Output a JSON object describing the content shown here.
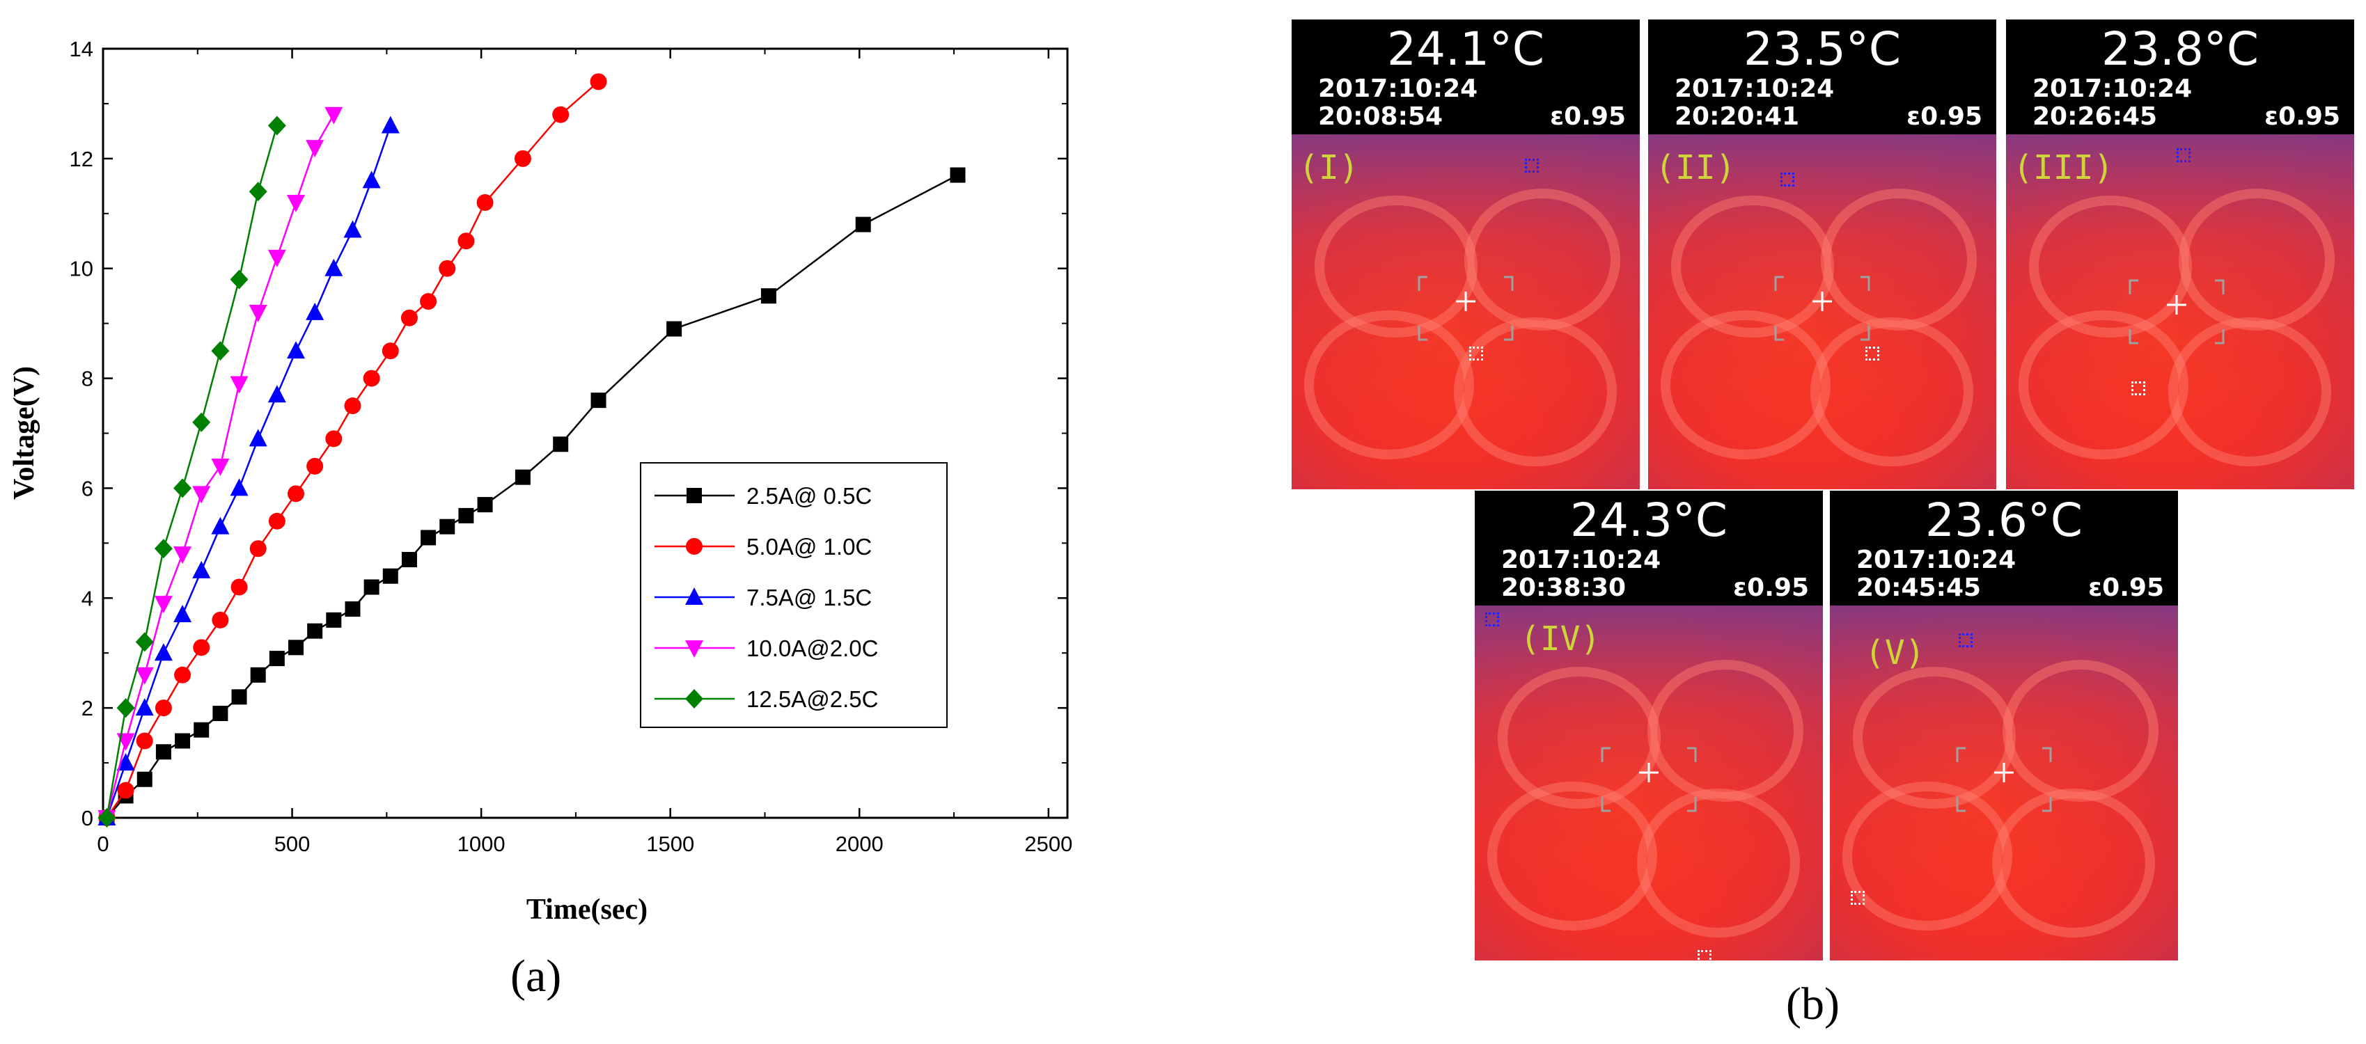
{
  "chart_data": {
    "type": "line",
    "xlabel": "Time(sec)",
    "ylabel": "Voltage(V)",
    "xlim": [
      0,
      2550
    ],
    "ylim": [
      0,
      14
    ],
    "xticks": [
      "0",
      "500",
      "1000",
      "1500",
      "2000",
      "2500"
    ],
    "yticks": [
      "0",
      "2",
      "4",
      "6",
      "8",
      "10",
      "12",
      "14"
    ],
    "grid": false,
    "legend_position": "center-right",
    "series": [
      {
        "name": "2.5A@ 0.5C",
        "color": "#000000",
        "marker": "square",
        "x": [
          10,
          60,
          110,
          160,
          210,
          260,
          310,
          360,
          410,
          460,
          510,
          560,
          610,
          660,
          710,
          760,
          810,
          860,
          910,
          960,
          1010,
          1110,
          1210,
          1310,
          1510,
          1760,
          2010,
          2260
        ],
        "y": [
          0,
          0.4,
          0.7,
          1.2,
          1.4,
          1.6,
          1.9,
          2.2,
          2.6,
          2.9,
          3.1,
          3.4,
          3.6,
          3.8,
          4.2,
          4.4,
          4.7,
          5.1,
          5.3,
          5.5,
          5.7,
          6.2,
          6.8,
          7.6,
          8.9,
          9.5,
          10.8,
          11.7
        ]
      },
      {
        "name": "5.0A@ 1.0C",
        "color": "#ff0000",
        "marker": "circle",
        "x": [
          10,
          60,
          110,
          160,
          210,
          260,
          310,
          360,
          410,
          460,
          510,
          560,
          610,
          660,
          710,
          760,
          810,
          860,
          910,
          960,
          1010,
          1110,
          1210,
          1310
        ],
        "y": [
          0,
          0.5,
          1.4,
          2.0,
          2.6,
          3.1,
          3.6,
          4.2,
          4.9,
          5.4,
          5.9,
          6.4,
          6.9,
          7.5,
          8.0,
          8.5,
          9.1,
          9.4,
          10.0,
          10.5,
          11.2,
          12.0,
          12.8,
          13.4
        ]
      },
      {
        "name": "7.5A@ 1.5C",
        "color": "#0000ff",
        "marker": "triangle-up",
        "x": [
          10,
          60,
          110,
          160,
          210,
          260,
          310,
          360,
          410,
          460,
          510,
          560,
          610,
          660,
          710,
          760
        ],
        "y": [
          0,
          1.0,
          2.0,
          3.0,
          3.7,
          4.5,
          5.3,
          6.0,
          6.9,
          7.7,
          8.5,
          9.2,
          10.0,
          10.7,
          11.6,
          12.6
        ]
      },
      {
        "name": "10.0A@2.0C",
        "color": "#ff00ff",
        "marker": "triangle-down",
        "x": [
          10,
          60,
          110,
          160,
          210,
          260,
          310,
          360,
          410,
          460,
          510,
          560,
          610
        ],
        "y": [
          0,
          1.4,
          2.6,
          3.9,
          4.8,
          5.9,
          6.4,
          7.9,
          9.2,
          10.2,
          11.2,
          12.2,
          12.8
        ]
      },
      {
        "name": "12.5A@2.5C",
        "color": "#008000",
        "marker": "diamond",
        "x": [
          10,
          60,
          110,
          160,
          210,
          260,
          310,
          360,
          410,
          460
        ],
        "y": [
          0,
          2.0,
          3.2,
          4.9,
          6.0,
          7.2,
          8.5,
          9.8,
          11.4,
          12.6
        ]
      }
    ]
  },
  "captions": {
    "a": "(a)",
    "b": "(b)"
  },
  "thermal_images": [
    {
      "temp": "24.1°C",
      "date": "2017:10:24",
      "time": "20:08:54",
      "emissivity": "ε0.95",
      "label": "(I)"
    },
    {
      "temp": "23.5°C",
      "date": "2017:10:24",
      "time": "20:20:41",
      "emissivity": "ε0.95",
      "label": "(II)"
    },
    {
      "temp": "23.8°C",
      "date": "2017:10:24",
      "time": "20:26:45",
      "emissivity": "ε0.95",
      "label": "(III)"
    },
    {
      "temp": "24.3°C",
      "date": "2017:10:24",
      "time": "20:38:30",
      "emissivity": "ε0.95",
      "label": "(IV)"
    },
    {
      "temp": "23.6°C",
      "date": "2017:10:24",
      "time": "20:45:45",
      "emissivity": "ε0.95",
      "label": "(V)"
    }
  ]
}
